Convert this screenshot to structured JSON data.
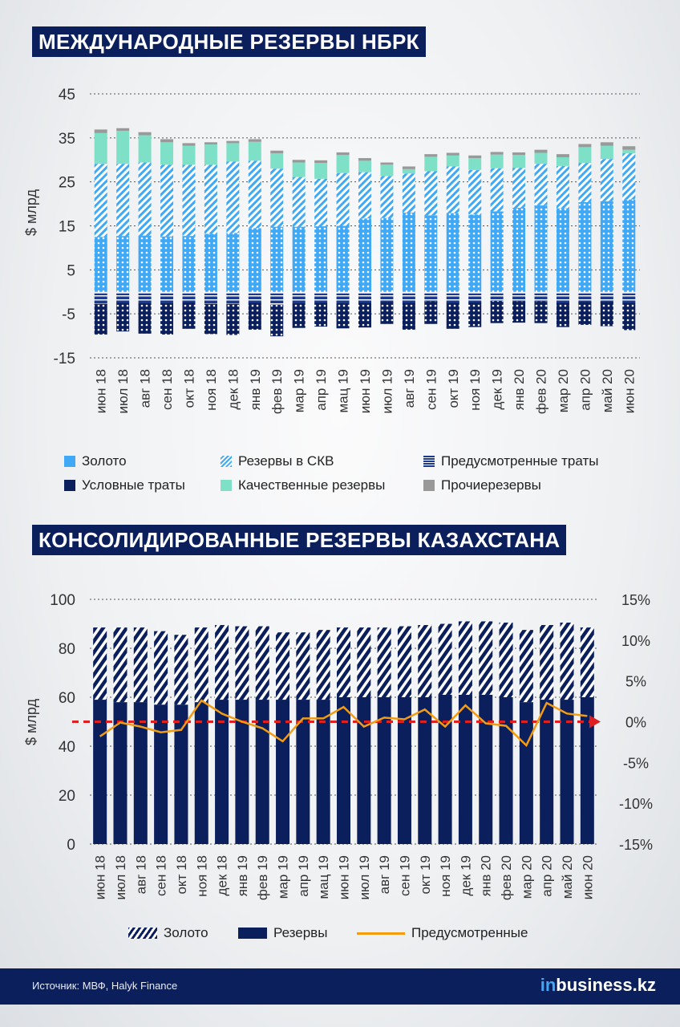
{
  "charts_title": {
    "top": "МЕЖДУНАРОДНЫЕ РЕЗЕРВЫ НБРК",
    "bottom": "КОНСОЛИДИРОВАННЫЕ РЕЗЕРВЫ КАЗАХСТАНА"
  },
  "colors": {
    "gold": "#3fa9f5",
    "skv": "#3fa9f5",
    "predus": "#1b3a8f",
    "uslov": "#0b1f5c",
    "quality": "#7fe0c8",
    "other": "#999999",
    "reserves_dark": "#0b1f5c",
    "line": "#f39c12",
    "ref_line": "#e02020"
  },
  "legend_top": {
    "gold": "Золото",
    "skv": "Резервы в СКВ",
    "predus": "Предусмотренные траты",
    "uslov": "Условные траты",
    "quality": "Качественные резервы",
    "other": "Прочиерезервы"
  },
  "legend_bottom": {
    "gold": "Золото",
    "reserves": "Резервы",
    "line": "Предусмотренные"
  },
  "footer": {
    "source": "Источник: МВФ, Halyk Finance",
    "logo_in": "in",
    "logo_rest": "business.kz"
  },
  "chart_data": [
    {
      "type": "bar",
      "ylabel": "$ млрд",
      "ylim": [
        -15,
        45
      ],
      "yticks": [
        45,
        35,
        25,
        15,
        5,
        -5,
        -15
      ],
      "categories": [
        "июн 18",
        "июл 18",
        "авг 18",
        "сен 18",
        "окт 18",
        "ноя 18",
        "дек 18",
        "янв 19",
        "фев 19",
        "мар 19",
        "апр 19",
        "мац 19",
        "июн 19",
        "июл 19",
        "авг 19",
        "сен 19",
        "окт 19",
        "ноя 19",
        "дек 19",
        "янв 20",
        "фев 20",
        "мар 20",
        "апр 20",
        "май 20",
        "июн 20"
      ],
      "series": [
        {
          "name": "Золото",
          "values": [
            12.5,
            12.7,
            12.8,
            12.6,
            12.7,
            13.2,
            13.4,
            14.5,
            14.8,
            14.8,
            14.9,
            15.0,
            16.7,
            16.8,
            18.0,
            17.4,
            17.9,
            17.6,
            18.3,
            19.1,
            19.7,
            19.0,
            20.4,
            20.6,
            21.0
          ]
        },
        {
          "name": "Резервы в СКВ",
          "values": [
            16.6,
            16.4,
            16.6,
            16.3,
            16.2,
            15.7,
            16.2,
            15.3,
            13.2,
            11.3,
            10.8,
            12.0,
            10.5,
            9.5,
            8.9,
            10.0,
            10.6,
            10.1,
            9.8,
            9.1,
            9.4,
            9.6,
            8.9,
            9.6,
            10.5
          ]
        },
        {
          "name": "Качественные резервы",
          "values": [
            7.0,
            7.5,
            6.2,
            5.1,
            4.3,
            4.6,
            4.2,
            4.3,
            3.5,
            3.3,
            3.6,
            4.1,
            2.6,
            2.6,
            1.0,
            3.3,
            2.5,
            2.7,
            3.1,
            2.9,
            2.5,
            2.0,
            3.6,
            3.0,
            0.8
          ]
        },
        {
          "name": "Прочиерезервы",
          "values": [
            0.8,
            0.6,
            0.7,
            0.7,
            0.6,
            0.5,
            0.5,
            0.6,
            0.6,
            0.6,
            0.6,
            0.6,
            0.6,
            0.5,
            0.6,
            0.6,
            0.6,
            0.6,
            0.6,
            0.6,
            0.7,
            0.7,
            0.7,
            0.8,
            0.8
          ]
        },
        {
          "name": "Предусмотренные траты",
          "values": [
            -2.7,
            -2.5,
            -2.6,
            -2.6,
            -2.4,
            -2.7,
            -2.7,
            -2.5,
            -3.0,
            -2.6,
            -2.5,
            -2.6,
            -2.5,
            -2.3,
            -2.5,
            -2.2,
            -2.5,
            -2.4,
            -2.1,
            -2.2,
            -2.2,
            -2.5,
            -2.3,
            -2.3,
            -2.5
          ]
        },
        {
          "name": "Условные траты",
          "values": [
            -7.0,
            -6.5,
            -6.9,
            -7.1,
            -6.0,
            -6.9,
            -7.1,
            -6.1,
            -7.1,
            -5.6,
            -5.4,
            -5.7,
            -5.6,
            -5.0,
            -6.1,
            -5.1,
            -5.9,
            -5.6,
            -5.0,
            -4.8,
            -4.9,
            -5.5,
            -5.2,
            -5.5,
            -6.2
          ]
        }
      ]
    },
    {
      "type": "bar",
      "ylabel": "$ млрд",
      "ylim": [
        0,
        100
      ],
      "yticks": [
        100,
        80,
        60,
        40,
        20,
        0
      ],
      "y2lim": [
        -15,
        15
      ],
      "y2ticks": [
        "15%",
        "10%",
        "5%",
        "0%",
        "-5%",
        "-10%",
        "-15%"
      ],
      "categories": [
        "июн 18",
        "июл 18",
        "авг 18",
        "сен 18",
        "окт 18",
        "ноя 18",
        "дек 18",
        "янв 19",
        "фев 19",
        "мар 19",
        "апр 19",
        "мац 19",
        "июн 19",
        "июл 19",
        "авг 19",
        "сен 19",
        "окт 19",
        "ноя 19",
        "дек 19",
        "янв 20",
        "фев 20",
        "мар 20",
        "апр 20",
        "май 20",
        "июн 20"
      ],
      "series": [
        {
          "name": "Резервы",
          "values": [
            59,
            58,
            58,
            57,
            57,
            58,
            59,
            59,
            59,
            59,
            59,
            59,
            60,
            60,
            60,
            60,
            60,
            61,
            61,
            61,
            60,
            58,
            59,
            59,
            60
          ]
        },
        {
          "name": "Золото",
          "values": [
            29.5,
            30.5,
            30.5,
            30,
            28.5,
            30.5,
            30.5,
            30,
            30,
            27.5,
            27.5,
            28.5,
            28.5,
            28.5,
            28.5,
            29,
            29.5,
            29,
            30,
            30,
            30.5,
            29.5,
            30.5,
            31.5,
            28.5
          ]
        },
        {
          "name": "Предусмотренные",
          "values": [
            -1.8,
            -0.1,
            -0.6,
            -1.3,
            -1.0,
            2.6,
            1.0,
            0.0,
            -0.8,
            -2.4,
            0.4,
            0.4,
            1.8,
            -0.6,
            0.5,
            0.3,
            1.5,
            -0.6,
            2.0,
            -0.2,
            -0.5,
            -2.9,
            2.3,
            1.0,
            0.7
          ]
        }
      ]
    }
  ]
}
